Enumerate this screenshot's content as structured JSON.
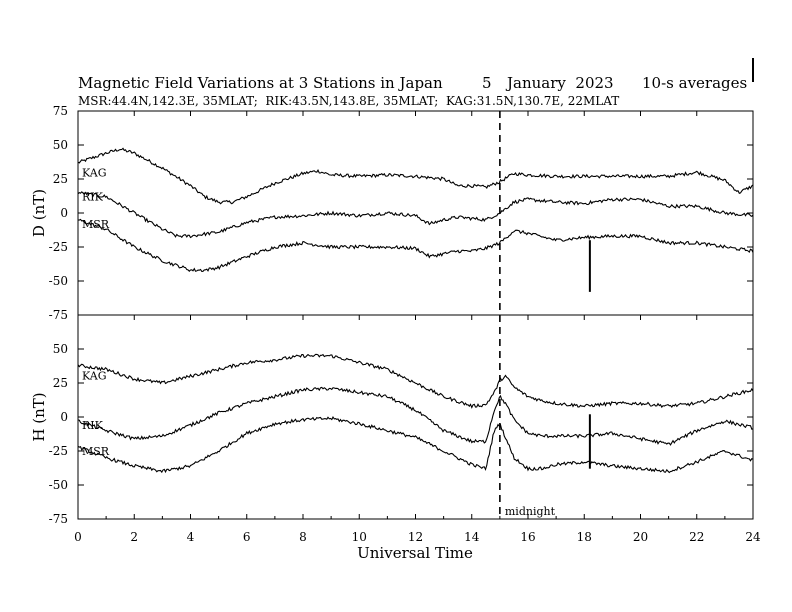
{
  "header": {
    "title": "Magnetic Field Variations at 3 Stations in Japan",
    "date_day": "5",
    "date_month_year": "January  2023",
    "averaging": "10-s averages",
    "stations_info": "MSR:44.4N,142.3E, 35MLAT;  RIK:43.5N,143.8E, 35MLAT;  KAG:31.5N,130.7E, 22MLAT"
  },
  "chart_data": {
    "type": "line",
    "xlabel": "Universal Time",
    "xlim": [
      0,
      24
    ],
    "x_ticks": [
      "0",
      "2",
      "4",
      "6",
      "8",
      "10",
      "12",
      "14",
      "16",
      "18",
      "20",
      "22",
      "24"
    ],
    "midnight_marker": {
      "x": 15.0,
      "label": "midnight"
    },
    "panels": [
      {
        "id": "D",
        "ylabel": "D (nT)",
        "ylim": [
          -75,
          75
        ],
        "y_ticks": [
          "75",
          "50",
          "25",
          "0",
          "-25",
          "-50",
          "-75"
        ],
        "spike": {
          "x": 18.2,
          "y_from": -20,
          "y_to": -58
        },
        "series": [
          {
            "name": "KAG",
            "x": [
              0,
              1,
              1.5,
              2,
              3,
              4,
              4.5,
              5,
              5.5,
              6,
              7,
              8,
              8.5,
              9,
              10,
              11,
              12,
              13,
              13.5,
              14,
              14.5,
              15,
              15.5,
              16,
              17,
              18,
              19,
              20,
              21,
              22,
              23,
              23.5,
              24
            ],
            "y": [
              37,
              44,
              47,
              44,
              33,
              20,
              12,
              8,
              8,
              12,
              22,
              29,
              31,
              28,
              27,
              28,
              27,
              25,
              20,
              20,
              19,
              23,
              29,
              28,
              27,
              27,
              27,
              27,
              27,
              30,
              24,
              15,
              20
            ]
          },
          {
            "name": "RIK",
            "x": [
              0,
              1,
              2,
              3,
              3.5,
              4,
              5,
              6,
              7,
              8,
              9,
              10,
              11,
              12,
              12.5,
              13,
              13.5,
              14,
              14.5,
              15,
              15.5,
              16,
              17,
              18,
              19,
              20,
              21,
              22,
              23,
              24
            ],
            "y": [
              15,
              12,
              0,
              -12,
              -17,
              -17,
              -14,
              -7,
              -3,
              -2,
              0,
              -2,
              0,
              -2,
              -8,
              -5,
              -3,
              -4,
              -5,
              0,
              8,
              10,
              8,
              7,
              10,
              10,
              5,
              5,
              0,
              -2
            ]
          },
          {
            "name": "MSR",
            "x": [
              0,
              1,
              2,
              3,
              4,
              4.5,
              5,
              6,
              7,
              8,
              9,
              10,
              11,
              12,
              12.5,
              13,
              13.5,
              14,
              14.5,
              15,
              15.5,
              16,
              17,
              18,
              19,
              20,
              21,
              22,
              23,
              24
            ],
            "y": [
              -5,
              -12,
              -25,
              -35,
              -42,
              -42,
              -40,
              -32,
              -25,
              -22,
              -25,
              -25,
              -25,
              -26,
              -32,
              -30,
              -28,
              -28,
              -26,
              -22,
              -13,
              -15,
              -20,
              -18,
              -17,
              -17,
              -22,
              -22,
              -25,
              -28
            ]
          }
        ]
      },
      {
        "id": "H",
        "ylabel": "H (nT)",
        "ylim": [
          -75,
          75
        ],
        "y_ticks": [
          "50",
          "25",
          "0",
          "-25",
          "-50",
          "-75"
        ],
        "spike": {
          "x": 18.2,
          "y_from": 2,
          "y_to": -38
        },
        "series": [
          {
            "name": "KAG",
            "x": [
              0,
              1,
              2,
              3,
              4,
              5,
              6,
              7,
              8,
              9,
              10,
              11,
              12,
              13,
              14,
              14.5,
              14.8,
              15,
              15.2,
              15.5,
              16,
              16.5,
              17,
              18,
              19,
              20,
              21,
              22,
              23,
              24
            ],
            "y": [
              38,
              35,
              28,
              25,
              30,
              35,
              40,
              42,
              45,
              45,
              40,
              35,
              25,
              15,
              8,
              9,
              18,
              27,
              30,
              22,
              15,
              12,
              10,
              8,
              10,
              10,
              8,
              10,
              15,
              20
            ]
          },
          {
            "name": "RIK",
            "x": [
              0,
              1,
              2,
              3,
              4,
              5,
              6,
              7,
              8,
              9,
              10,
              11,
              12,
              13,
              14,
              14.5,
              14.8,
              15,
              15.2,
              15.5,
              16,
              16.5,
              17,
              18,
              19,
              20,
              21,
              22,
              23,
              24
            ],
            "y": [
              -3,
              -10,
              -16,
              -14,
              -6,
              3,
              10,
              15,
              20,
              21,
              18,
              15,
              5,
              -10,
              -18,
              -18,
              5,
              15,
              10,
              -2,
              -12,
              -14,
              -14,
              -14,
              -12,
              -16,
              -20,
              -10,
              -3,
              -8
            ]
          },
          {
            "name": "MSR",
            "x": [
              0,
              1,
              2,
              3,
              4,
              5,
              6,
              7,
              8,
              9,
              10,
              11,
              12,
              13,
              14,
              14.5,
              14.8,
              15,
              15.2,
              15.5,
              16,
              16.5,
              17,
              18,
              19,
              20,
              21,
              22,
              23,
              24
            ],
            "y": [
              -22,
              -30,
              -36,
              -40,
              -36,
              -25,
              -12,
              -5,
              -2,
              -1,
              -5,
              -10,
              -15,
              -25,
              -35,
              -38,
              -10,
              -5,
              -15,
              -30,
              -38,
              -38,
              -35,
              -33,
              -36,
              -38,
              -40,
              -33,
              -25,
              -32
            ]
          }
        ]
      }
    ]
  }
}
